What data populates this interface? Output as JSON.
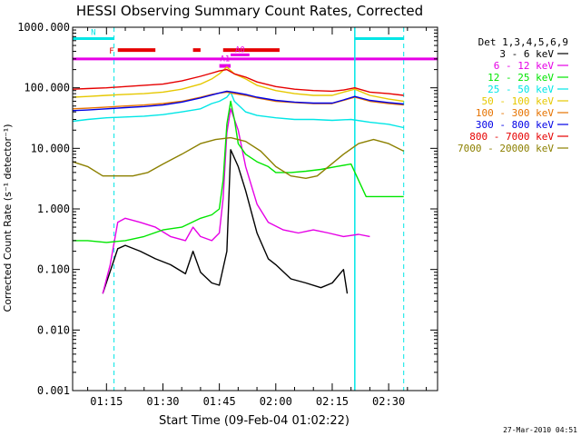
{
  "chart_data": {
    "type": "line",
    "title": "HESSI Observing Summary Count Rates, Corrected",
    "xlabel": "Start Time (09-Feb-04 01:02:22)",
    "ylabel": "Corrected Count Rate (s⁻¹ detector⁻¹)",
    "yscale": "log",
    "ylim": [
      0.001,
      1000
    ],
    "xlim_minutes": [
      1.1,
      2.715
    ],
    "x_unit": "hours after 00:00 UT (tick labels hh:mm)",
    "xlim": [
      "01:06",
      "02:43"
    ],
    "x_ticks": [
      "01:15",
      "01:30",
      "01:45",
      "02:00",
      "02:15",
      "02:30"
    ],
    "y_ticks": [
      "1000.000",
      "100.000",
      "10.000",
      "1.000",
      "0.100",
      "0.010",
      "0.001"
    ],
    "grid": false,
    "legend_position": "right",
    "legend_header": "Det 1,3,4,5,6,9",
    "series": [
      {
        "name": "3 - 6 keV",
        "color": "#000000",
        "x": [
          "01:14",
          "01:18",
          "01:20",
          "01:24",
          "01:28",
          "01:32",
          "01:36",
          "01:38",
          "01:40",
          "01:43",
          "01:45",
          "01:47",
          "01:48",
          "01:50",
          "01:52",
          "01:55",
          "01:58",
          "02:00",
          "02:04",
          "02:08",
          "02:12",
          "02:15",
          "02:18",
          "02:19"
        ],
        "values": [
          0.04,
          0.22,
          0.25,
          0.2,
          0.15,
          0.12,
          0.085,
          0.2,
          0.09,
          0.06,
          0.055,
          0.2,
          9.5,
          5,
          2,
          0.4,
          0.15,
          0.12,
          0.07,
          0.06,
          0.05,
          0.06,
          0.1,
          0.04
        ]
      },
      {
        "name": "6 - 12 keV",
        "color": "#e600e6",
        "x": [
          "01:14",
          "01:16",
          "01:18",
          "01:20",
          "01:24",
          "01:28",
          "01:32",
          "01:36",
          "01:38",
          "01:40",
          "01:43",
          "01:45",
          "01:46",
          "01:47",
          "01:48",
          "01:50",
          "01:52",
          "01:55",
          "01:58",
          "02:02",
          "02:06",
          "02:10",
          "02:14",
          "02:18",
          "02:22",
          "02:25"
        ],
        "values": [
          0.04,
          0.12,
          0.6,
          0.7,
          0.6,
          0.5,
          0.35,
          0.3,
          0.5,
          0.35,
          0.3,
          0.4,
          1.5,
          18,
          45,
          20,
          5,
          1.2,
          0.6,
          0.45,
          0.4,
          0.45,
          0.4,
          0.35,
          0.38,
          0.35
        ]
      },
      {
        "name": "12 - 25 keV",
        "color": "#00e600",
        "x": [
          "01:06",
          "01:10",
          "01:15",
          "01:20",
          "01:25",
          "01:30",
          "01:35",
          "01:40",
          "01:43",
          "01:45",
          "01:46",
          "01:47",
          "01:48",
          "01:49",
          "01:50",
          "01:52",
          "01:55",
          "01:58",
          "02:00",
          "02:04",
          "02:08",
          "02:12",
          "02:16",
          "02:20",
          "02:24",
          "02:27",
          "02:34"
        ],
        "values": [
          0.3,
          0.3,
          0.28,
          0.3,
          0.35,
          0.45,
          0.5,
          0.7,
          0.8,
          1.0,
          3,
          25,
          60,
          30,
          12,
          8,
          6,
          5,
          4,
          4,
          4.2,
          4.5,
          5,
          5.5,
          1.6,
          1.6,
          1.6
        ]
      },
      {
        "name": "25 - 50 keV",
        "color": "#00e6e6",
        "x": [
          "01:06",
          "01:10",
          "01:15",
          "01:20",
          "01:25",
          "01:30",
          "01:35",
          "01:40",
          "01:43",
          "01:45",
          "01:47",
          "01:48",
          "01:49",
          "01:52",
          "01:55",
          "02:00",
          "02:05",
          "02:10",
          "02:15",
          "02:20",
          "02:25",
          "02:30",
          "02:34"
        ],
        "values": [
          28,
          30,
          32,
          33,
          34,
          36,
          40,
          45,
          55,
          60,
          70,
          85,
          60,
          40,
          35,
          32,
          30,
          30,
          29,
          30,
          27,
          25,
          22
        ]
      },
      {
        "name": "50 - 100 keV",
        "color": "#e6c800",
        "x": [
          "01:06",
          "01:10",
          "01:15",
          "01:20",
          "01:25",
          "01:30",
          "01:35",
          "01:40",
          "01:43",
          "01:45",
          "01:47",
          "01:49",
          "01:52",
          "01:55",
          "02:00",
          "02:05",
          "02:10",
          "02:15",
          "02:18",
          "02:21",
          "02:25",
          "02:30",
          "02:34"
        ],
        "values": [
          70,
          72,
          75,
          78,
          80,
          85,
          95,
          115,
          140,
          170,
          220,
          170,
          140,
          110,
          90,
          80,
          75,
          75,
          85,
          95,
          75,
          65,
          60
        ]
      },
      {
        "name": "100 - 300 keV",
        "color": "#e67300",
        "x": [
          "01:06",
          "01:10",
          "01:15",
          "01:20",
          "01:25",
          "01:30",
          "01:35",
          "01:40",
          "01:43",
          "01:45",
          "01:47",
          "01:49",
          "01:52",
          "01:55",
          "02:00",
          "02:05",
          "02:10",
          "02:15",
          "02:18",
          "02:21",
          "02:25",
          "02:30",
          "02:34"
        ],
        "values": [
          45,
          46,
          48,
          50,
          52,
          55,
          60,
          70,
          78,
          82,
          85,
          80,
          75,
          68,
          60,
          57,
          55,
          55,
          62,
          70,
          60,
          55,
          52
        ]
      },
      {
        "name": "300 - 800 keV",
        "color": "#0000e6",
        "x": [
          "01:06",
          "01:10",
          "01:15",
          "01:20",
          "01:25",
          "01:30",
          "01:35",
          "01:40",
          "01:43",
          "01:45",
          "01:47",
          "01:49",
          "01:52",
          "01:55",
          "02:00",
          "02:05",
          "02:10",
          "02:15",
          "02:18",
          "02:21",
          "02:25",
          "02:30",
          "02:34"
        ],
        "values": [
          42,
          43,
          45,
          47,
          49,
          52,
          58,
          68,
          76,
          82,
          88,
          84,
          78,
          70,
          62,
          58,
          56,
          56,
          63,
          72,
          62,
          57,
          54
        ]
      },
      {
        "name": "800 - 7000 keV",
        "color": "#e60000",
        "x": [
          "01:06",
          "01:10",
          "01:15",
          "01:20",
          "01:25",
          "01:30",
          "01:35",
          "01:40",
          "01:43",
          "01:45",
          "01:47",
          "01:49",
          "01:52",
          "01:55",
          "02:00",
          "02:05",
          "02:10",
          "02:15",
          "02:18",
          "02:21",
          "02:25",
          "02:30",
          "02:34"
        ],
        "values": [
          95,
          97,
          100,
          105,
          110,
          115,
          130,
          155,
          175,
          190,
          200,
          170,
          150,
          125,
          105,
          95,
          90,
          88,
          92,
          100,
          85,
          80,
          75
        ]
      },
      {
        "name": "7000 - 20000 keV",
        "color": "#8c8000",
        "x": [
          "01:06",
          "01:10",
          "01:14",
          "01:18",
          "01:22",
          "01:26",
          "01:30",
          "01:35",
          "01:40",
          "01:44",
          "01:48",
          "01:52",
          "01:56",
          "02:00",
          "02:04",
          "02:08",
          "02:11",
          "02:14",
          "02:18",
          "02:22",
          "02:26",
          "02:30",
          "02:34"
        ],
        "values": [
          6,
          5,
          3.5,
          3.5,
          3.5,
          4,
          5.5,
          8,
          12,
          14,
          15,
          13,
          9,
          5,
          3.5,
          3.2,
          3.5,
          5,
          8,
          12,
          14,
          12,
          9
        ]
      }
    ],
    "annotations": {
      "N": {
        "label": "N",
        "color": "#00e6e6",
        "x": [
          [
            "01:06",
            "01:17"
          ],
          [
            "02:21",
            "02:34"
          ]
        ]
      },
      "F": {
        "label": "F",
        "color": "#e60000",
        "x": [
          [
            "01:18",
            "01:28"
          ],
          [
            "01:38",
            "01:40"
          ],
          [
            "01:46",
            "02:01"
          ]
        ]
      },
      "A1": {
        "label": "A1",
        "color": "#e600e6",
        "x": [
          [
            "01:45",
            "01:48"
          ]
        ]
      },
      "A0": {
        "label": "A0",
        "color": "#e600e6",
        "x": [
          [
            "01:48",
            "01:53"
          ]
        ]
      },
      "attenuator_line_color": "#e600e6",
      "eclipse_lines": {
        "color": "#00e6e6",
        "solid_x": [
          "02:21"
        ],
        "dashed_x": [
          "01:17",
          "02:34"
        ]
      }
    }
  },
  "footer": {
    "timestamp": "27-Mar-2010 04:51"
  }
}
